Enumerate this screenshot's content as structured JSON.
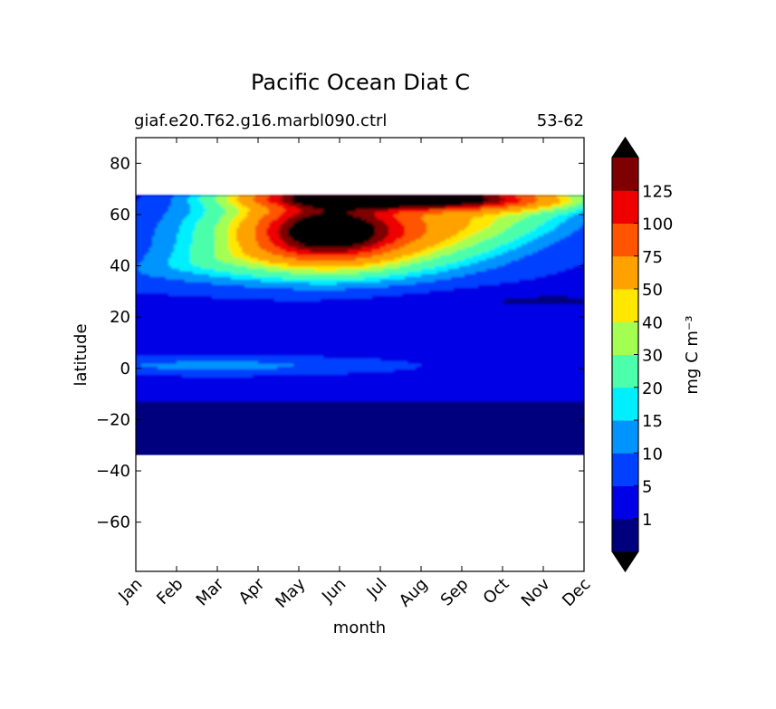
{
  "chart_data": {
    "type": "contour",
    "title": "Pacific Ocean Diat C",
    "subtitle_left": "giaf.e20.T62.g16.marbl090.ctrl",
    "subtitle_right": "53-62",
    "xlabel": "month",
    "ylabel": "latitude",
    "x_ticks": [
      "Jan",
      "Feb",
      "Mar",
      "Apr",
      "May",
      "Jun",
      "Jul",
      "Aug",
      "Sep",
      "Oct",
      "Nov",
      "Dec"
    ],
    "y_ticks": [
      "80",
      "60",
      "40",
      "20",
      "0",
      "−20",
      "−40",
      "−60"
    ],
    "y_tick_values": [
      80,
      60,
      40,
      20,
      0,
      -20,
      -40,
      -60
    ],
    "xlim": [
      1,
      12
    ],
    "ylim": [
      -79.2,
      90
    ],
    "data_lat_range": [
      -33.8,
      67.5
    ],
    "colorbar": {
      "label": "mg C m⁻³",
      "levels": [
        0,
        1,
        5,
        10,
        15,
        20,
        30,
        40,
        50,
        75,
        100,
        125,
        150
      ],
      "tick_labels": [
        "1",
        "5",
        "10",
        "15",
        "20",
        "30",
        "40",
        "50",
        "75",
        "100",
        "125"
      ],
      "colors": [
        "#00007f",
        "#0000e6",
        "#0040ff",
        "#0094ff",
        "#00efff",
        "#4cffaa",
        "#a4ff53",
        "#ffe700",
        "#ffa200",
        "#ff5500",
        "#ee0000",
        "#7f0000"
      ],
      "extend": "both",
      "under_color": "#000000",
      "over_color": "#000000"
    }
  }
}
